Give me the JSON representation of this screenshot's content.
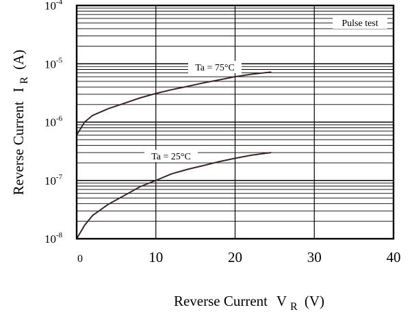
{
  "chart_data": {
    "type": "line",
    "title": "",
    "xlabel": {
      "text": "Reverse Current",
      "symbol": "V",
      "subscript": "R",
      "unit": "(V)"
    },
    "ylabel": {
      "text": "Reverse Current",
      "symbol": "I",
      "subscript": "R",
      "unit": "(A)"
    },
    "x_ticks": [
      "0",
      "10",
      "20",
      "30",
      "40"
    ],
    "x_tick_values": [
      0,
      10,
      20,
      30,
      40
    ],
    "xlim": [
      0,
      40
    ],
    "y_scale": "log",
    "ylim": [
      1e-08,
      0.0001
    ],
    "y_ticks": [
      {
        "base": "10",
        "exp": "-8",
        "value": 1e-08
      },
      {
        "base": "10",
        "exp": "-7",
        "value": 1e-07
      },
      {
        "base": "10",
        "exp": "-6",
        "value": 1e-06
      },
      {
        "base": "10",
        "exp": "-5",
        "value": 1e-05
      },
      {
        "base": "10",
        "exp": "-4",
        "value": 0.0001
      }
    ],
    "grid": true,
    "series": [
      {
        "name": "Ta = 75°C",
        "x": [
          0,
          1,
          2,
          4,
          6,
          8,
          10,
          12,
          14,
          16,
          18,
          20,
          22,
          24.5
        ],
        "y": [
          6e-07,
          1e-06,
          1.3e-06,
          1.7e-06,
          2.1e-06,
          2.6e-06,
          3.1e-06,
          3.6e-06,
          4.1e-06,
          4.7e-06,
          5.3e-06,
          6e-06,
          6.6e-06,
          7.2e-06
        ]
      },
      {
        "name": "Ta = 25°C",
        "x": [
          0,
          1,
          2,
          4,
          6,
          8,
          10,
          12,
          14,
          16,
          18,
          20,
          22,
          24.5
        ],
        "y": [
          1e-08,
          1.7e-08,
          2.5e-08,
          3.9e-08,
          5.5e-08,
          7.8e-08,
          1e-07,
          1.3e-07,
          1.55e-07,
          1.8e-07,
          2.1e-07,
          2.4e-07,
          2.7e-07,
          3e-07
        ]
      }
    ],
    "annotations": [
      {
        "text": "Pulse test",
        "position": "top-right"
      }
    ],
    "colors": {
      "grid": "#000000",
      "curve": "#3a2528",
      "frame": "#000000"
    }
  }
}
